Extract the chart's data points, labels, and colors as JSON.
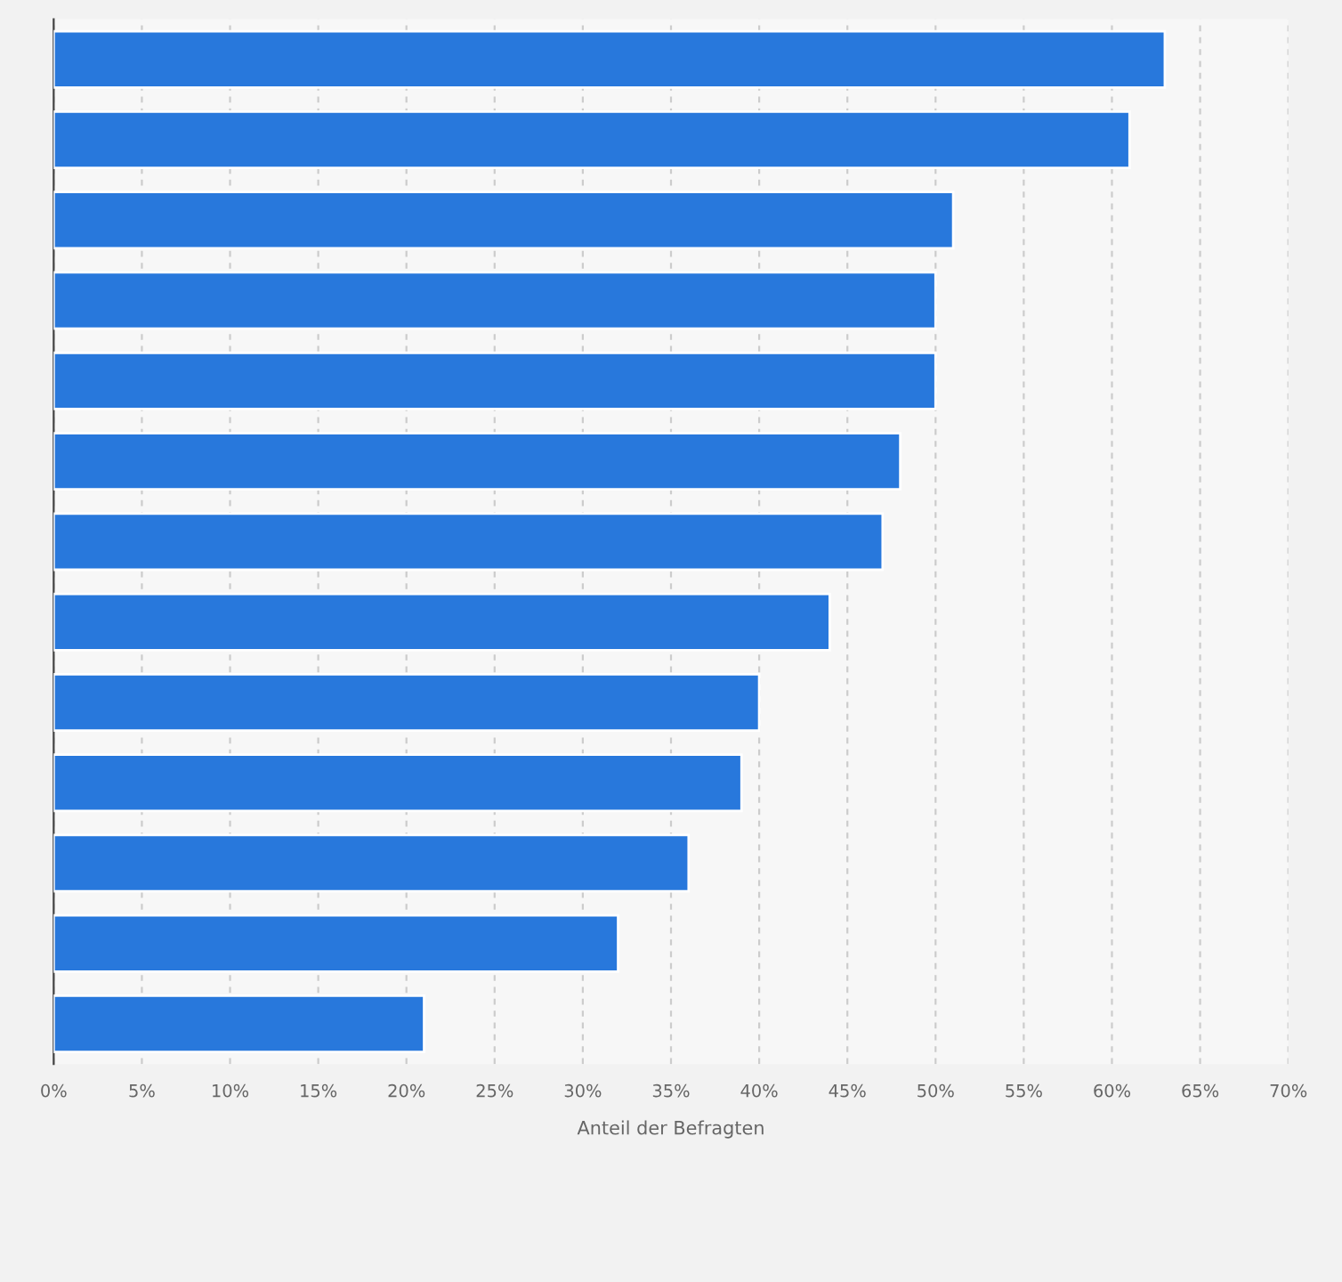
{
  "chart_data": {
    "type": "bar",
    "orientation": "horizontal",
    "xlabel": "Anteil der Befragten",
    "categories": [
      null,
      null,
      null,
      null,
      null,
      null,
      null,
      null,
      null,
      null,
      null,
      null,
      null
    ],
    "values": [
      63,
      61,
      51,
      50,
      50,
      48,
      47,
      44,
      40,
      39,
      36,
      32,
      21
    ],
    "color": "#2878dc",
    "xlim": [
      0,
      70
    ],
    "xticks": [
      {
        "value": 0,
        "label": "0%"
      },
      {
        "value": 5,
        "label": "5%"
      },
      {
        "value": 10,
        "label": "10%"
      },
      {
        "value": 15,
        "label": "15%"
      },
      {
        "value": 20,
        "label": "20%"
      },
      {
        "value": 25,
        "label": "25%"
      },
      {
        "value": 30,
        "label": "30%"
      },
      {
        "value": 35,
        "label": "35%"
      },
      {
        "value": 40,
        "label": "40%"
      },
      {
        "value": 45,
        "label": "45%"
      },
      {
        "value": 50,
        "label": "50%"
      },
      {
        "value": 55,
        "label": "55%"
      },
      {
        "value": 60,
        "label": "60%"
      },
      {
        "value": 65,
        "label": "65%"
      },
      {
        "value": 70,
        "label": "70%"
      }
    ],
    "grid": "x"
  }
}
